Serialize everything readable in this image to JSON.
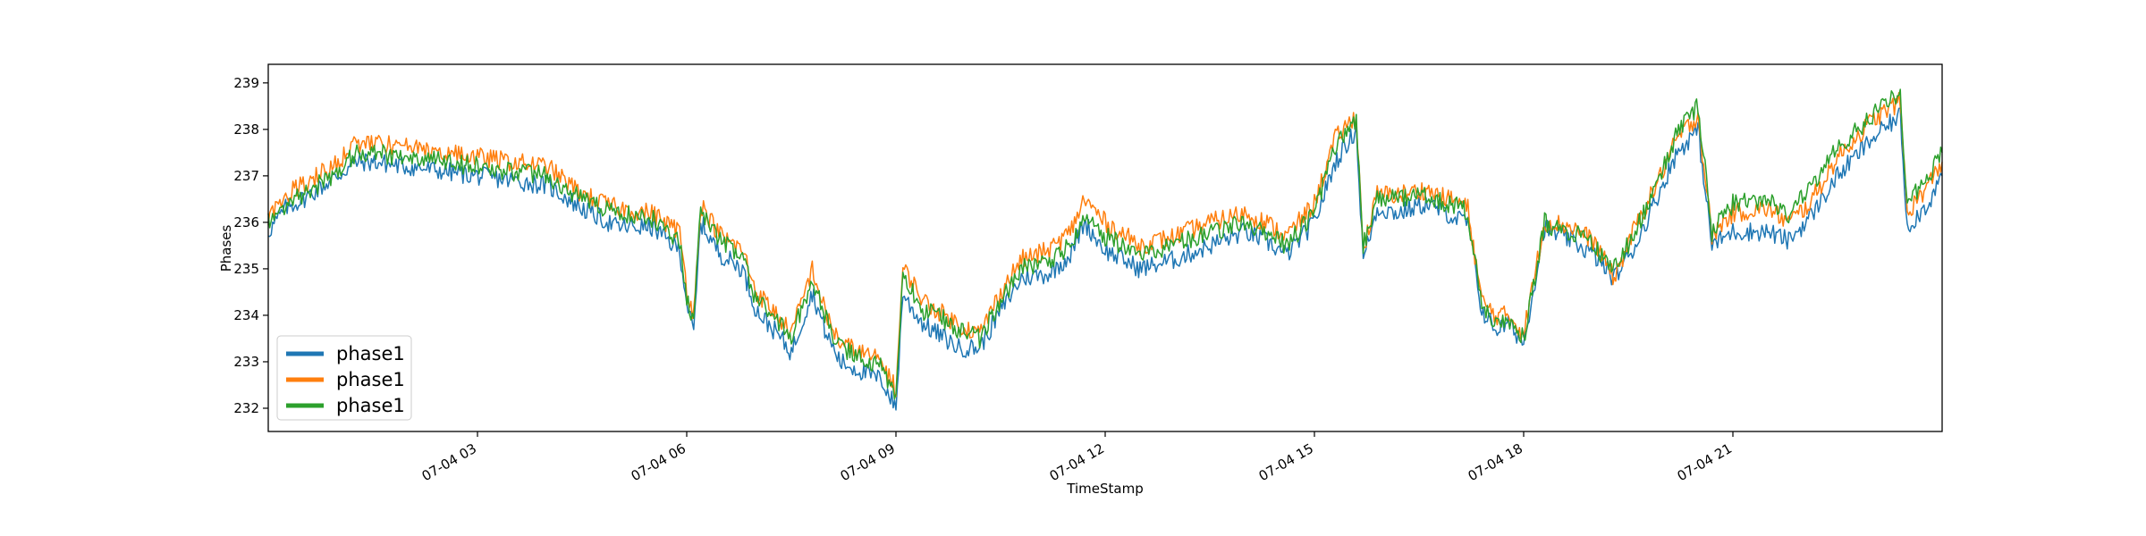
{
  "chart_data": {
    "type": "line",
    "title": "",
    "xlabel": "TimeStamp",
    "ylabel": "Phases",
    "xlim": [
      "07-04 00:00",
      "07-05 00:00"
    ],
    "ylim": [
      231.5,
      239.4
    ],
    "x_ticks": [
      {
        "hour": 3,
        "label": "07-04 03"
      },
      {
        "hour": 6,
        "label": "07-04 06"
      },
      {
        "hour": 9,
        "label": "07-04 09"
      },
      {
        "hour": 12,
        "label": "07-04 12"
      },
      {
        "hour": 15,
        "label": "07-04 15"
      },
      {
        "hour": 18,
        "label": "07-04 18"
      },
      {
        "hour": 21,
        "label": "07-04 21"
      }
    ],
    "y_ticks": [
      232,
      233,
      234,
      235,
      236,
      237,
      238,
      239
    ],
    "grid": false,
    "legend": "lower-left",
    "series": [
      {
        "name": "phase1",
        "color": "#1f77b4",
        "x": [
          0,
          0.25,
          0.5,
          1,
          1.25,
          1.5,
          2,
          2.5,
          3,
          3.5,
          4,
          4.5,
          5,
          5.5,
          5.9,
          6.0,
          6.1,
          6.2,
          6.4,
          6.5,
          6.6,
          6.8,
          7,
          7.3,
          7.5,
          7.8,
          8,
          8.2,
          8.5,
          8.8,
          9.0,
          9.1,
          9.2,
          9.4,
          9.6,
          9.9,
          10.2,
          10.5,
          10.8,
          11.2,
          11.5,
          11.7,
          12,
          12.5,
          13,
          13.5,
          14,
          14.3,
          14.6,
          15,
          15.3,
          15.6,
          15.7,
          15.9,
          16.2,
          16.6,
          16.9,
          17,
          17.2,
          17.4,
          17.6,
          17.8,
          18,
          18.3,
          18.4,
          18.7,
          19,
          19.3,
          19.6,
          19.9,
          20.2,
          20.5,
          20.7,
          20.8,
          21,
          21.5,
          21.8,
          22.1,
          22.5,
          23,
          23.4,
          23.5,
          23.8,
          24
        ],
        "y": [
          235.8,
          236.3,
          236.5,
          237.0,
          237.3,
          237.3,
          237.2,
          237.1,
          237.0,
          236.9,
          236.8,
          236.3,
          235.9,
          235.9,
          235.4,
          234.3,
          233.6,
          236.0,
          235.5,
          235.3,
          235.2,
          235.0,
          234.1,
          233.6,
          233.2,
          234.5,
          233.6,
          233.0,
          232.8,
          232.6,
          232.0,
          234.5,
          234.2,
          233.8,
          233.6,
          233.3,
          233.3,
          234.1,
          234.8,
          234.9,
          235.3,
          236.0,
          235.4,
          235.0,
          235.2,
          235.5,
          235.8,
          235.6,
          235.3,
          236.0,
          237.3,
          238.0,
          235.2,
          236.3,
          236.2,
          236.4,
          236.2,
          236.1,
          236.0,
          234.1,
          233.7,
          233.8,
          233.4,
          235.9,
          235.8,
          235.6,
          235.3,
          234.8,
          235.5,
          236.5,
          237.5,
          238.0,
          235.5,
          235.6,
          235.8,
          235.8,
          235.6,
          236.1,
          237.0,
          237.8,
          238.3,
          235.9,
          236.4,
          237.0
        ]
      },
      {
        "name": "phase1",
        "color": "#ff7f0e",
        "x": [
          0,
          0.25,
          0.5,
          1,
          1.25,
          1.5,
          2,
          2.5,
          3,
          3.5,
          4,
          4.5,
          5,
          5.5,
          5.9,
          6.0,
          6.1,
          6.2,
          6.4,
          6.5,
          6.6,
          6.8,
          7,
          7.3,
          7.5,
          7.8,
          8,
          8.2,
          8.5,
          8.8,
          9.0,
          9.1,
          9.2,
          9.4,
          9.6,
          9.9,
          10.2,
          10.5,
          10.8,
          11.2,
          11.5,
          11.7,
          12,
          12.5,
          13,
          13.5,
          14,
          14.3,
          14.6,
          15,
          15.3,
          15.6,
          15.7,
          15.9,
          16.2,
          16.6,
          16.9,
          17,
          17.2,
          17.4,
          17.6,
          17.8,
          18,
          18.3,
          18.4,
          18.7,
          19,
          19.3,
          19.6,
          19.9,
          20.2,
          20.5,
          20.7,
          20.8,
          21,
          21.5,
          21.8,
          22.1,
          22.5,
          23,
          23.4,
          23.5,
          23.8,
          24
        ],
        "y": [
          236.1,
          236.6,
          236.8,
          237.3,
          237.7,
          237.7,
          237.6,
          237.5,
          237.4,
          237.3,
          237.2,
          236.6,
          236.3,
          236.2,
          235.8,
          234.6,
          234.0,
          236.4,
          235.9,
          235.7,
          235.6,
          235.4,
          234.5,
          234.0,
          233.6,
          235.0,
          234.0,
          233.4,
          233.2,
          233.0,
          232.4,
          235.0,
          234.8,
          234.3,
          234.1,
          233.8,
          233.6,
          234.5,
          235.2,
          235.4,
          235.8,
          236.5,
          236.0,
          235.5,
          235.7,
          236.0,
          236.2,
          236.0,
          235.7,
          236.4,
          237.8,
          238.3,
          235.4,
          236.6,
          236.6,
          236.7,
          236.5,
          236.5,
          236.3,
          234.3,
          234.0,
          234.0,
          233.6,
          236.0,
          236.0,
          235.9,
          235.6,
          234.8,
          235.9,
          236.8,
          237.8,
          238.3,
          235.7,
          235.9,
          236.2,
          236.3,
          236.0,
          236.4,
          237.4,
          238.2,
          238.6,
          236.2,
          236.8,
          237.3
        ]
      },
      {
        "name": "phase1",
        "color": "#2ca02c",
        "x": [
          0,
          0.25,
          0.5,
          1,
          1.25,
          1.5,
          2,
          2.5,
          3,
          3.5,
          4,
          4.5,
          5,
          5.5,
          5.9,
          6.0,
          6.1,
          6.2,
          6.4,
          6.5,
          6.6,
          6.8,
          7,
          7.3,
          7.5,
          7.8,
          8,
          8.2,
          8.5,
          8.8,
          9.0,
          9.1,
          9.2,
          9.4,
          9.6,
          9.9,
          10.2,
          10.5,
          10.8,
          11.2,
          11.5,
          11.7,
          12,
          12.5,
          13,
          13.5,
          14,
          14.3,
          14.6,
          15,
          15.3,
          15.6,
          15.7,
          15.9,
          16.2,
          16.6,
          16.9,
          17,
          17.2,
          17.4,
          17.6,
          17.8,
          18,
          18.3,
          18.4,
          18.7,
          19,
          19.3,
          19.6,
          19.9,
          20.2,
          20.5,
          20.7,
          20.8,
          21,
          21.5,
          21.8,
          22.1,
          22.5,
          23,
          23.4,
          23.5,
          23.8,
          24
        ],
        "y": [
          236.0,
          236.4,
          236.6,
          237.1,
          237.5,
          237.5,
          237.4,
          237.3,
          237.2,
          237.1,
          237.0,
          236.5,
          236.2,
          236.1,
          235.6,
          234.4,
          233.9,
          236.3,
          235.8,
          235.6,
          235.5,
          235.2,
          234.3,
          233.9,
          233.5,
          234.8,
          233.9,
          233.3,
          233.1,
          232.9,
          232.2,
          234.8,
          234.6,
          234.1,
          234.0,
          233.7,
          233.5,
          234.3,
          235.0,
          235.2,
          235.5,
          236.2,
          235.7,
          235.3,
          235.5,
          235.8,
          236.0,
          235.8,
          235.5,
          236.2,
          237.6,
          238.2,
          235.5,
          236.5,
          236.5,
          236.6,
          236.4,
          236.4,
          236.2,
          234.2,
          233.9,
          233.9,
          233.5,
          236.0,
          235.9,
          235.8,
          235.5,
          235.0,
          235.8,
          236.8,
          237.9,
          238.5,
          235.8,
          236.0,
          236.4,
          236.5,
          236.2,
          236.7,
          237.6,
          238.3,
          238.8,
          236.4,
          237.0,
          237.5
        ]
      }
    ]
  }
}
